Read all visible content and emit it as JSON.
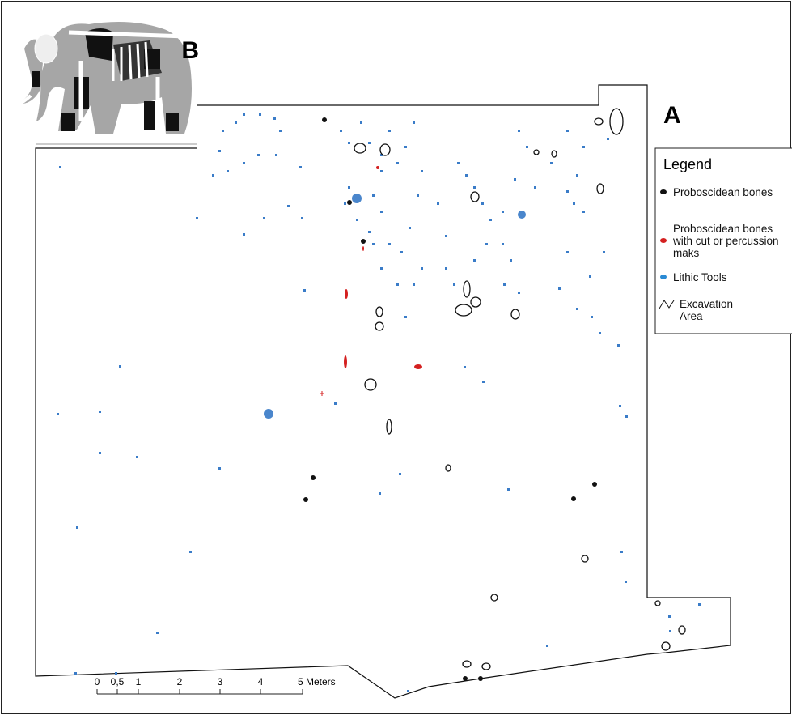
{
  "panel_labels": {
    "a": "A",
    "b": "B"
  },
  "legend": {
    "title": "Legend",
    "items": [
      "Proboscidean bones",
      "Proboscidean bones with cut or percussion maks",
      "Lithic Tools",
      "Excavation Area"
    ]
  },
  "scale_bar": {
    "labels": [
      "0",
      "0,5",
      "1",
      "2",
      "3",
      "4",
      "5 Meters"
    ]
  }
}
